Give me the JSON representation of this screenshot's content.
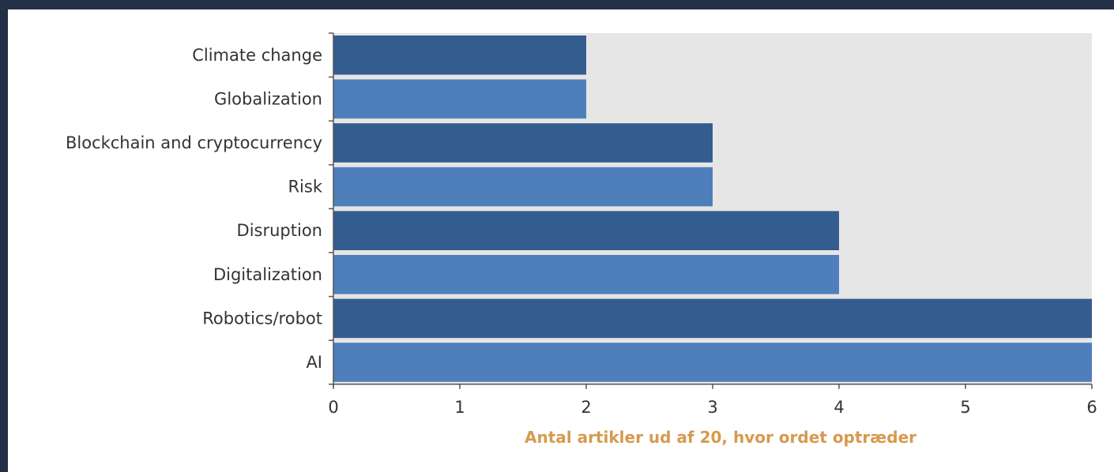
{
  "chart_data": {
    "type": "bar",
    "orientation": "horizontal",
    "categories": [
      "Climate change",
      "Globalization",
      "Blockchain and cryptocurrency",
      "Risk",
      "Disruption",
      "Digitalization",
      "Robotics/robot",
      "AI"
    ],
    "values": [
      2,
      2,
      3,
      3,
      4,
      4,
      6,
      6
    ],
    "title": "",
    "xlabel": "Antal artikler ud af 20, hvor ordet optræder",
    "ylabel": "",
    "xlim": [
      0,
      6
    ],
    "xticks": [
      "0",
      "1",
      "2",
      "3",
      "4",
      "5",
      "6"
    ],
    "grid": false,
    "legend": "none",
    "colors": {
      "bar_dark": "#345d8f",
      "bar_light": "#4f7fbb",
      "plot_bg": "#e6e6e6",
      "axis": "#555555",
      "xlabel": "#d69a4e",
      "page_bg": "#233047",
      "panel_bg": "#ffffff"
    }
  }
}
